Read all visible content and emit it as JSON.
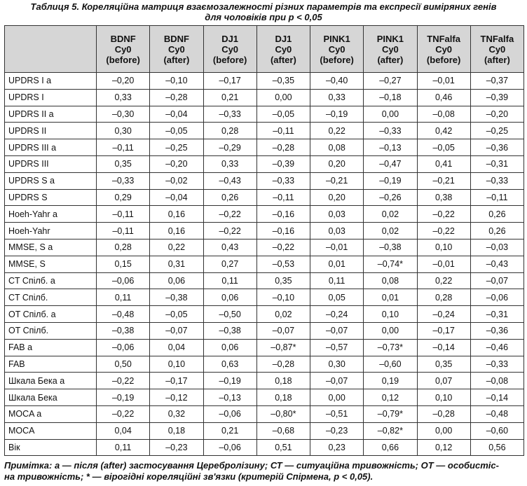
{
  "title_lines": [
    "Таблиця 5. Кореляційна матриця взаємозалежності різних параметрів та експресії виміряних генів",
    "для чоловіків при p < 0,05"
  ],
  "table": {
    "columns": [
      [
        "BDNF",
        "Cy0",
        "(before)"
      ],
      [
        "BDNF",
        "Cy0",
        "(after)"
      ],
      [
        "DJ1",
        "Cy0",
        "(before)"
      ],
      [
        "DJ1",
        "Cy0",
        "(after)"
      ],
      [
        "PINK1",
        "Cy0",
        "(before)"
      ],
      [
        "PINK1",
        "Cy0",
        "(after)"
      ],
      [
        "TNFalfa",
        "Cy0",
        "(before)"
      ],
      [
        "TNFalfa",
        "Cy0",
        "(after)"
      ]
    ],
    "rows": [
      [
        "UPDRS I a",
        "–0,20",
        "–0,10",
        "–0,17",
        "–0,35",
        "–0,40",
        "–0,27",
        "–0,01",
        "–0,37"
      ],
      [
        "UPDRS I",
        "0,33",
        "–0,28",
        "0,21",
        "0,00",
        "0,33",
        "–0,18",
        "0,46",
        "–0,39"
      ],
      [
        "UPDRS II a",
        "–0,30",
        "–0,04",
        "–0,33",
        "–0,05",
        "–0,19",
        "0,00",
        "–0,08",
        "–0,20"
      ],
      [
        "UPDRS II",
        "0,30",
        "–0,05",
        "0,28",
        "–0,11",
        "0,22",
        "–0,33",
        "0,42",
        "–0,25"
      ],
      [
        "UPDRS III a",
        "–0,11",
        "–0,25",
        "–0,29",
        "–0,28",
        "0,08",
        "–0,13",
        "–0,05",
        "–0,36"
      ],
      [
        "UPDRS III",
        "0,35",
        "–0,20",
        "0,33",
        "–0,39",
        "0,20",
        "–0,47",
        "0,41",
        "–0,31"
      ],
      [
        "UPDRS S a",
        "–0,33",
        "–0,02",
        "–0,43",
        "–0,33",
        "–0,21",
        "–0,19",
        "–0,21",
        "–0,33"
      ],
      [
        "UPDRS S",
        "0,29",
        "–0,04",
        "0,26",
        "–0,11",
        "0,20",
        "–0,26",
        "0,38",
        "–0,11"
      ],
      [
        "Hoeh-Yahr a",
        "–0,11",
        "0,16",
        "–0,22",
        "–0,16",
        "0,03",
        "0,02",
        "–0,22",
        "0,26"
      ],
      [
        "Hoeh-Yahr",
        "–0,11",
        "0,16",
        "–0,22",
        "–0,16",
        "0,03",
        "0,02",
        "–0,22",
        "0,26"
      ],
      [
        "MMSE, S a",
        "0,28",
        "0,22",
        "0,43",
        "–0,22",
        "–0,01",
        "–0,38",
        "0,10",
        "–0,03"
      ],
      [
        "MMSE, S",
        "0,15",
        "0,31",
        "0,27",
        "–0,53",
        "0,01",
        "–0,74*",
        "–0,01",
        "–0,43"
      ],
      [
        "CT Спілб. a",
        "–0,06",
        "0,06",
        "0,11",
        "0,35",
        "0,11",
        "0,08",
        "0,22",
        "–0,07"
      ],
      [
        "CT Спілб.",
        "0,11",
        "–0,38",
        "0,06",
        "–0,10",
        "0,05",
        "0,01",
        "0,28",
        "–0,06"
      ],
      [
        "OT Спілб. a",
        "–0,48",
        "–0,05",
        "–0,50",
        "0,02",
        "–0,24",
        "0,10",
        "–0,24",
        "–0,31"
      ],
      [
        "OT Спілб.",
        "–0,38",
        "–0,07",
        "–0,38",
        "–0,07",
        "–0,07",
        "0,00",
        "–0,17",
        "–0,36"
      ],
      [
        "FAB a",
        "–0,06",
        "0,04",
        "0,06",
        "–0,87*",
        "–0,57",
        "–0,73*",
        "–0,14",
        "–0,46"
      ],
      [
        "FAB",
        "0,50",
        "0,10",
        "0,63",
        "–0,28",
        "0,30",
        "–0,60",
        "0,35",
        "–0,33"
      ],
      [
        "Шкала Бека a",
        "–0,22",
        "–0,17",
        "–0,19",
        "0,18",
        "–0,07",
        "0,19",
        "0,07",
        "–0,08"
      ],
      [
        "Шкала Бека",
        "–0,19",
        "–0,12",
        "–0,13",
        "0,18",
        "0,00",
        "0,12",
        "0,10",
        "–0,14"
      ],
      [
        "MOCA a",
        "–0,22",
        "0,32",
        "–0,06",
        "–0,80*",
        "–0,51",
        "–0,79*",
        "–0,28",
        "–0,48"
      ],
      [
        "MOCA",
        "0,04",
        "0,18",
        "0,21",
        "–0,68",
        "–0,23",
        "–0,82*",
        "0,00",
        "–0,60"
      ],
      [
        "Вік",
        "0,11",
        "–0,23",
        "–0,06",
        "0,51",
        "0,23",
        "0,66",
        "0,12",
        "0,56"
      ]
    ]
  },
  "note_lines": [
    "Примітка: а — після (after) застосування Церебролізину; СТ — ситуаційна тривожність; ОТ — особистіс-",
    "на тривожність; * — вірогідні кореляційні зв'язки (критерій Спірмена, p < 0,05)."
  ]
}
